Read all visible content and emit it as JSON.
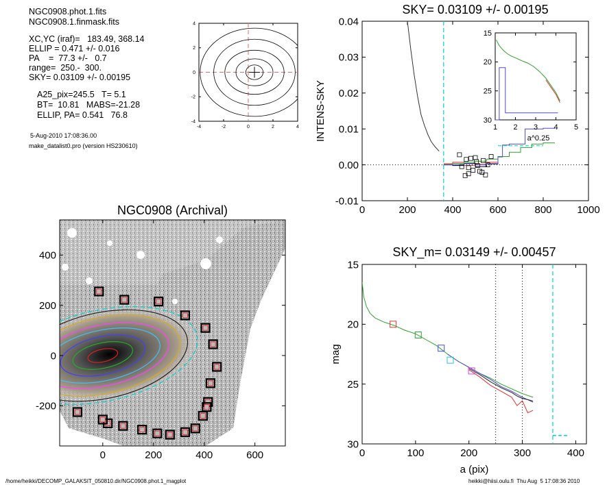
{
  "info": {
    "lines1": [
      "NGC0908.phot.1.fits",
      "NGC0908.1.finmask.fits"
    ],
    "lines2": [
      "XC,YC (iraf)=   183.49, 368.14",
      "ELLIP = 0.471 +/- 0.016",
      "PA    =  77.3 +/-   0.7",
      "range=  250.-  300.",
      "SKY= 0.03109 +/- 0.00195"
    ],
    "lines3": [
      "A25_pix=245.5   T= 5.1",
      "BT=  10.81   MABS=-21.28",
      "ELLIP, PA= 0.541   76.8"
    ],
    "date": "5-Aug-2010 17:08:36.00",
    "program": "make_datalist0.pro (version HS230610)"
  },
  "footer": {
    "left": "/home/heikki/DECOMP_GALAKSIT_050810.dir/NGC0908.phot.1_magplot",
    "right": "heikki@hiisi.oulu.fi  Thu Aug  5 17:08:36 2010"
  },
  "chart_data": [
    {
      "id": "center-contour",
      "type": "contour",
      "title": "",
      "xlim": [
        -4,
        4
      ],
      "ylim": [
        -4,
        4
      ],
      "xticks": [
        -4,
        -2,
        0,
        2,
        4
      ],
      "yticks": [
        -4,
        -2,
        0,
        2,
        4
      ],
      "center": [
        0.5,
        0
      ],
      "contours": [
        [
          0.7,
          0.6
        ],
        [
          1.5,
          1.1
        ],
        [
          2.4,
          1.8
        ],
        [
          3.3,
          2.7
        ],
        [
          4.4,
          3.6
        ]
      ],
      "color": "#000000",
      "crosshair_color": "#e66a6a"
    },
    {
      "id": "sky-profile",
      "type": "line",
      "title": "SKY= 0.03109 +/- 0.00195",
      "xlabel": "",
      "ylabel": "INTENS-SKY",
      "xlim": [
        0,
        1000
      ],
      "ylim": [
        -0.01,
        0.04
      ],
      "xticks": [
        0,
        200,
        400,
        600,
        800,
        1000
      ],
      "yticks": [
        -0.01,
        0.0,
        0.01,
        0.02,
        0.03,
        0.04
      ],
      "ytick_labels": [
        "-0.01",
        "0.00",
        "0.01",
        "0.02",
        "0.03",
        "0.04"
      ],
      "profile": {
        "x": [
          200,
          215,
          230,
          245,
          260,
          275,
          290,
          305,
          320,
          330,
          340
        ],
        "y": [
          0.04,
          0.032,
          0.025,
          0.019,
          0.014,
          0.011,
          0.0085,
          0.0065,
          0.0052,
          0.0045,
          0.0038
        ]
      },
      "sky_line_x": 360,
      "squares": {
        "x": [
          430,
          440,
          455,
          470,
          480,
          490,
          500,
          510,
          520,
          535,
          545,
          555,
          570,
          470,
          505,
          530,
          460
        ],
        "y": [
          0.0028,
          -0.0005,
          -0.003,
          -0.0025,
          0.0018,
          -0.0015,
          0.002,
          -0.0002,
          -0.0018,
          0.0012,
          -0.0028,
          0.0,
          0.0023,
          -0.0008,
          0.0009,
          -0.0021,
          0.0015
        ]
      },
      "series": [
        {
          "color": "#000000",
          "x": [
            360,
            400,
            450,
            500,
            550,
            600
          ],
          "y": [
            0.0,
            -0.0002,
            0.0004,
            -0.0005,
            0.0003,
            0.0006
          ]
        },
        {
          "color": "#e03030",
          "x": [
            360,
            400,
            450,
            500,
            550,
            600
          ],
          "y": [
            0.0003,
            0.0007,
            -0.0002,
            0.0001,
            0.0007,
            0.0001
          ]
        },
        {
          "color": "#2aa02a",
          "x": [
            360,
            400,
            450,
            500,
            550,
            600,
            650,
            700,
            750,
            800,
            850
          ],
          "y": [
            0.0001,
            0.0004,
            0.0007,
            0.001,
            0.0016,
            0.0023,
            0.0035,
            0.0048,
            0.0058,
            0.0061,
            0.0062
          ]
        },
        {
          "color": "#4a4acc",
          "x": [
            360,
            400,
            450,
            500,
            550,
            600,
            620,
            650,
            690,
            720,
            800,
            850
          ],
          "y": [
            0.0,
            0.0,
            0.0003,
            0.0,
            0.0002,
            0.0022,
            0.0055,
            0.0058,
            0.0058,
            0.01,
            0.0102,
            0.0104
          ]
        },
        {
          "color": "#00d0d0",
          "dash": true,
          "x": [
            600,
            800
          ],
          "y": [
            0.0053,
            0.0053
          ]
        }
      ],
      "inset": {
        "xlabel": "a^0.25",
        "xlim": [
          1,
          5
        ],
        "ylim": [
          15,
          30
        ],
        "xticks": [
          1,
          2,
          3,
          4,
          5
        ],
        "yticks": [
          15,
          20,
          25,
          30
        ],
        "mag": {
          "x": [
            1.05,
            1.2,
            1.4,
            1.6,
            1.8,
            2.0,
            2.3,
            2.6,
            2.9,
            3.2,
            3.5,
            3.8,
            4.0,
            4.2
          ],
          "y": [
            16.2,
            17.2,
            18.0,
            18.6,
            19.0,
            19.3,
            19.8,
            20.2,
            20.8,
            21.7,
            22.8,
            24.3,
            25.3,
            26.7
          ]
        },
        "blue_step": {
          "x": [
            1.0,
            1.2,
            1.2,
            1.5,
            1.5,
            4.1
          ],
          "y": [
            30.0,
            30.0,
            21.0,
            21.0,
            28.8,
            28.8
          ]
        }
      }
    },
    {
      "id": "image",
      "type": "image",
      "title": "NGC0908 (Archival)",
      "xlim": [
        -170,
        720
      ],
      "ylim": [
        -360,
        540
      ],
      "xticks": [
        0,
        200,
        400,
        600
      ],
      "yticks": [
        -200,
        0,
        200,
        400
      ],
      "ellipses": [
        {
          "a": 380,
          "b": 180,
          "color": "#00d0d0",
          "dash": true
        },
        {
          "a": 340,
          "b": 170,
          "color": "#202020"
        },
        {
          "a": 310,
          "b": 150,
          "color": "#d4aa20"
        },
        {
          "a": 265,
          "b": 120,
          "color": "#ff40ff"
        },
        {
          "a": 230,
          "b": 100,
          "color": "#40c0ff"
        },
        {
          "a": 170,
          "b": 75,
          "color": "#4040ff"
        },
        {
          "a": 120,
          "b": 50,
          "color": "#20b020"
        },
        {
          "a": 60,
          "b": 25,
          "color": "#e02020"
        }
      ],
      "apertures": {
        "x": [
          -15,
          85,
          220,
          325,
          405,
          435,
          450,
          425,
          415,
          410,
          395,
          365,
          325,
          265,
          215,
          155,
          80,
          20,
          0,
          -100
        ],
        "y": [
          255,
          222,
          215,
          160,
          110,
          45,
          -45,
          -110,
          -185,
          -205,
          -240,
          -290,
          -305,
          -315,
          -310,
          -295,
          -280,
          -270,
          -255,
          -225
        ]
      }
    },
    {
      "id": "mag-profile",
      "type": "line",
      "title": "SKY_m=  0.03149 +/- 0.00457",
      "xlabel": "a (pix)",
      "ylabel": "mag",
      "xlim": [
        0,
        420
      ],
      "ylim": [
        15,
        30
      ],
      "xticks": [
        0,
        100,
        200,
        300,
        400
      ],
      "yticks": [
        15,
        20,
        25,
        30
      ],
      "vlines": [
        250,
        300
      ],
      "sky_line_x": 357,
      "sky_seg": {
        "x": [
          357,
          385
        ],
        "y": [
          29.3,
          29.3
        ]
      },
      "series": [
        {
          "color": "#2aa02a",
          "x": [
            0,
            3,
            8,
            15,
            25,
            40,
            60,
            80,
            100,
            120,
            140,
            160,
            180,
            200,
            220,
            240,
            260,
            280,
            300,
            320
          ],
          "y": [
            16.5,
            17.7,
            18.5,
            19.1,
            19.5,
            19.8,
            20.1,
            20.5,
            20.8,
            21.3,
            21.8,
            22.5,
            23.1,
            23.6,
            24.1,
            24.5,
            25.0,
            25.4,
            25.8,
            26.1
          ]
        },
        {
          "color": "#4a4acc",
          "x": [
            160,
            180,
            200,
            220,
            240,
            260,
            280,
            300,
            310,
            320
          ],
          "y": [
            22.5,
            23.1,
            23.6,
            24.1,
            24.6,
            25.2,
            25.6,
            26.1,
            26.3,
            26.4
          ]
        },
        {
          "color": "#202020",
          "x": [
            200,
            220,
            240,
            260,
            280,
            290,
            300,
            310,
            320
          ],
          "y": [
            23.7,
            24.2,
            24.8,
            25.3,
            25.7,
            26.0,
            26.2,
            26.3,
            26.5
          ]
        },
        {
          "color": "#e03030",
          "x": [
            200,
            220,
            240,
            260,
            280,
            290,
            300,
            310,
            320
          ],
          "y": [
            23.8,
            24.4,
            25.1,
            25.6,
            26.1,
            26.8,
            26.4,
            27.4,
            27.2
          ]
        }
      ],
      "squares": [
        {
          "x": 58,
          "y": 20.0,
          "color": "#e03030"
        },
        {
          "x": 105,
          "y": 20.9,
          "color": "#2aa02a"
        },
        {
          "x": 148,
          "y": 22.0,
          "color": "#4a4acc"
        },
        {
          "x": 165,
          "y": 23.0,
          "color": "#20c8d8"
        },
        {
          "x": 205,
          "y": 23.9,
          "color": "#e040e0"
        }
      ]
    }
  ]
}
